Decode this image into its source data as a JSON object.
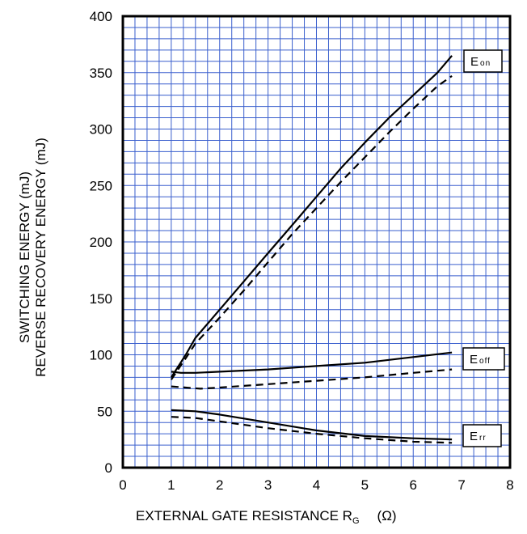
{
  "chart_data": {
    "type": "line",
    "xlim": [
      0,
      8
    ],
    "ylim": [
      0,
      400
    ],
    "x_ticks": [
      "0",
      "1",
      "2",
      "3",
      "4",
      "5",
      "6",
      "7",
      "8"
    ],
    "y_ticks": [
      "0",
      "50",
      "100",
      "150",
      "200",
      "250",
      "300",
      "350",
      "400"
    ],
    "ylabel_line1": "SWITCHING ENERGY  (mJ)",
    "ylabel_line2": "REVERSE RECOVERY ENERGY  (mJ)",
    "xlabel_main": "EXTERNAL GATE RESISTANCE   R",
    "xlabel_sub": "G",
    "xlabel_unit": "(Ω)",
    "grid": true,
    "grid_color": "#3a5fcd",
    "series": [
      {
        "name": "Eon",
        "label_main": "E",
        "label_sub": "on",
        "style": "solid",
        "x": [
          1.0,
          1.3,
          1.5,
          2.0,
          2.5,
          3.0,
          3.5,
          4.0,
          4.5,
          5.0,
          5.5,
          6.0,
          6.5,
          6.8
        ],
        "y": [
          80,
          100,
          115,
          140,
          165,
          190,
          215,
          240,
          265,
          288,
          310,
          330,
          350,
          365
        ]
      },
      {
        "name": "Eon (dashed)",
        "style": "dashed",
        "x": [
          1.0,
          1.3,
          1.5,
          2.0,
          2.5,
          3.0,
          3.5,
          4.0,
          4.5,
          5.0,
          5.5,
          6.0,
          6.5,
          6.8
        ],
        "y": [
          78,
          97,
          110,
          133,
          157,
          182,
          207,
          230,
          253,
          275,
          297,
          318,
          338,
          347
        ]
      },
      {
        "name": "Eoff",
        "label_main": "E",
        "label_sub": "off",
        "style": "solid",
        "x": [
          1.0,
          1.2,
          1.5,
          2.0,
          3.0,
          4.0,
          5.0,
          6.0,
          6.8
        ],
        "y": [
          85,
          84,
          84,
          85,
          87,
          90,
          93,
          98,
          102
        ]
      },
      {
        "name": "Eoff (dashed)",
        "style": "dashed",
        "x": [
          1.0,
          1.3,
          1.6,
          2.0,
          3.0,
          4.0,
          5.0,
          6.0,
          6.8
        ],
        "y": [
          72,
          71,
          70,
          71,
          74,
          77,
          80,
          84,
          87
        ]
      },
      {
        "name": "Err",
        "label_main": "E",
        "label_sub": "rr",
        "style": "solid",
        "x": [
          1.0,
          1.5,
          2.0,
          3.0,
          4.0,
          5.0,
          6.0,
          6.8
        ],
        "y": [
          51,
          50,
          47,
          40,
          33,
          28,
          26,
          25
        ]
      },
      {
        "name": "Err (dashed)",
        "style": "dashed",
        "x": [
          1.0,
          1.5,
          2.0,
          3.0,
          4.0,
          5.0,
          6.0,
          6.8
        ],
        "y": [
          45,
          44,
          41,
          35,
          30,
          26,
          23,
          22
        ]
      }
    ]
  }
}
